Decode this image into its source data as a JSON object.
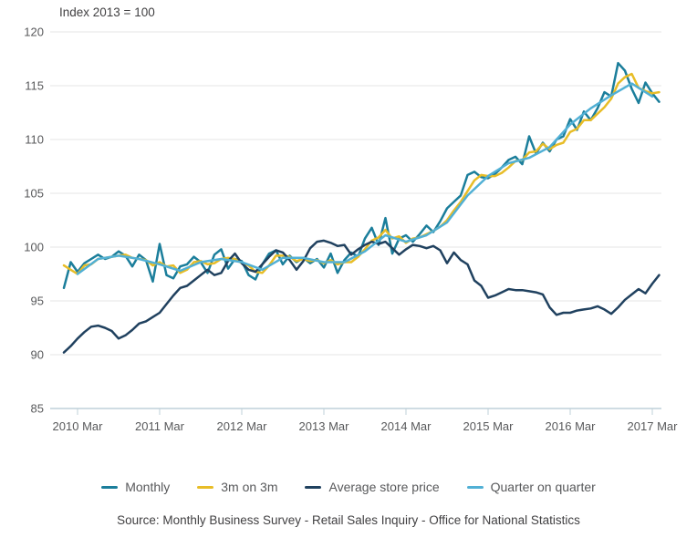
{
  "chart": {
    "title": "Index 2013 = 100",
    "source": "Source: Monthly Business Survey - Retail Sales Inquiry - Office for National Statistics"
  },
  "chart_data": {
    "type": "line",
    "title": "Index 2013 = 100",
    "xlabel": "",
    "ylabel": "",
    "ylim": [
      85,
      120
    ],
    "y_ticks": [
      85,
      90,
      95,
      100,
      105,
      110,
      115,
      120
    ],
    "x_tick_labels": [
      "2010 Mar",
      "2011 Mar",
      "2012 Mar",
      "2013 Mar",
      "2014 Mar",
      "2015 Mar",
      "2016 Mar",
      "2017 Mar"
    ],
    "grid": true,
    "legend_position": "bottom",
    "colors": {
      "grid": "#e6e6e6",
      "axis_line": "#bfd0da",
      "axis_text": "#58595b",
      "title_text": "#414042"
    },
    "series": [
      {
        "name": "Monthly",
        "color": "#1b7e9b",
        "month_start": 0,
        "month_step": 1,
        "values": [
          96.2,
          98.6,
          97.7,
          98.5,
          98.9,
          99.3,
          98.9,
          99.1,
          99.6,
          99.2,
          98.2,
          99.3,
          98.8,
          96.8,
          100.3,
          97.4,
          97.1,
          98.2,
          98.4,
          99.1,
          98.6,
          97.6,
          99.3,
          99.8,
          98.0,
          98.9,
          98.7,
          97.4,
          97.0,
          98.4,
          99.4,
          99.7,
          98.4,
          99.2,
          98.6,
          99.0,
          98.5,
          98.9,
          98.1,
          99.4,
          97.6,
          98.8,
          99.5,
          99.1,
          100.8,
          101.8,
          100.2,
          102.7,
          99.4,
          100.8,
          101.1,
          100.5,
          101.2,
          102.0,
          101.4,
          102.4,
          103.6,
          104.2,
          104.8,
          106.7,
          107.0,
          106.5,
          106.4,
          106.8,
          107.4,
          108.1,
          108.4,
          107.7,
          110.3,
          108.7,
          109.7,
          108.9,
          110.0,
          110.3,
          111.9,
          110.9,
          112.6,
          111.8,
          112.9,
          114.4,
          114.0,
          117.1,
          116.4,
          114.7,
          113.4,
          115.3,
          114.3,
          113.5
        ]
      },
      {
        "name": "3m on 3m",
        "color": "#e8bd27",
        "month_start": 0,
        "month_step": 1,
        "values": [
          98.3,
          97.9,
          97.5,
          98.3,
          98.4,
          98.9,
          99.0,
          99.1,
          99.2,
          99.3,
          99.0,
          98.9,
          98.8,
          98.3,
          98.6,
          98.2,
          98.3,
          97.6,
          97.9,
          98.6,
          98.7,
          98.4,
          98.5,
          98.9,
          99.0,
          98.9,
          98.5,
          98.3,
          97.7,
          97.6,
          98.3,
          99.2,
          99.2,
          99.1,
          98.7,
          98.9,
          98.7,
          98.8,
          98.5,
          98.8,
          98.4,
          98.6,
          98.6,
          99.1,
          99.8,
          100.6,
          100.9,
          101.6,
          100.8,
          101.0,
          100.4,
          100.8,
          100.9,
          101.2,
          101.5,
          101.9,
          102.5,
          103.4,
          104.2,
          105.2,
          106.2,
          106.7,
          106.6,
          106.6,
          106.9,
          107.4,
          108.0,
          108.1,
          108.8,
          108.9,
          109.6,
          109.1,
          109.5,
          109.7,
          110.7,
          111.0,
          111.8,
          111.8,
          112.4,
          113.0,
          113.8,
          115.2,
          115.8,
          116.1,
          114.8,
          114.5,
          114.3,
          114.4
        ]
      },
      {
        "name": "Average store price",
        "color": "#20415f",
        "month_start": 0,
        "month_step": 1,
        "values": [
          90.2,
          90.8,
          91.5,
          92.1,
          92.6,
          92.7,
          92.5,
          92.2,
          91.5,
          91.8,
          92.3,
          92.9,
          93.1,
          93.5,
          93.9,
          94.7,
          95.5,
          96.2,
          96.4,
          96.9,
          97.4,
          97.9,
          97.4,
          97.6,
          98.7,
          99.4,
          98.5,
          97.9,
          97.7,
          98.4,
          99.1,
          99.7,
          99.5,
          98.8,
          97.9,
          98.7,
          99.9,
          100.5,
          100.6,
          100.4,
          100.1,
          100.2,
          99.3,
          99.8,
          100.2,
          100.5,
          100.3,
          100.5,
          99.9,
          99.3,
          99.8,
          100.2,
          100.1,
          99.9,
          100.1,
          99.7,
          98.5,
          99.5,
          98.8,
          98.4,
          96.9,
          96.4,
          95.3,
          95.5,
          95.8,
          96.1,
          96.0,
          96.0,
          95.9,
          95.8,
          95.6,
          94.4,
          93.7,
          93.9,
          93.9,
          94.1,
          94.2,
          94.3,
          94.5,
          94.2,
          93.8,
          94.4,
          95.1,
          95.6,
          96.1,
          95.7,
          96.6,
          97.4
        ]
      },
      {
        "name": "Quarter on quarter",
        "color": "#51b0d5",
        "month_start": 2,
        "month_step": 3,
        "values": [
          97.5,
          98.9,
          99.2,
          98.9,
          98.4,
          97.8,
          98.6,
          98.9,
          98.6,
          97.9,
          99.0,
          99.0,
          98.6,
          98.6,
          99.6,
          101.1,
          100.5,
          101.1,
          102.3,
          104.8,
          106.6,
          107.8,
          108.3,
          109.3,
          111.4,
          112.9,
          114.1,
          115.2,
          114.0
        ]
      }
    ]
  }
}
